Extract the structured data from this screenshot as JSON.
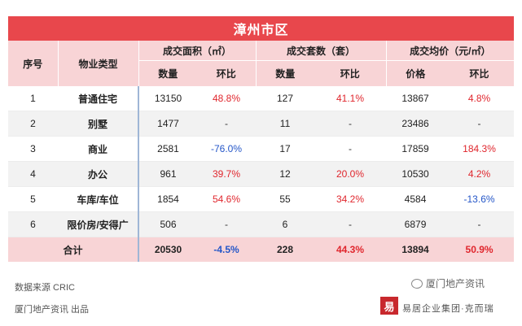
{
  "title": "漳州市区",
  "header": {
    "seq": "序号",
    "type": "物业类型",
    "area": "成交面积（㎡）",
    "sets": "成交套数（套）",
    "price": "成交均价（元/㎡）",
    "qty": "数量",
    "mom": "环比",
    "qty2": "数量",
    "mom2": "环比",
    "price_col": "价格",
    "mom3": "环比"
  },
  "rows": [
    {
      "seq": "1",
      "type": "普通住宅",
      "area": "13150",
      "area_mom": "48.8%",
      "sets": "127",
      "sets_mom": "41.1%",
      "price": "13867",
      "price_mom": "4.8%"
    },
    {
      "seq": "2",
      "type": "别墅",
      "area": "1477",
      "area_mom": "-",
      "sets": "11",
      "sets_mom": "-",
      "price": "23486",
      "price_mom": "-"
    },
    {
      "seq": "3",
      "type": "商业",
      "area": "2581",
      "area_mom": "-76.0%",
      "sets": "17",
      "sets_mom": "-",
      "price": "17859",
      "price_mom": "184.3%"
    },
    {
      "seq": "4",
      "type": "办公",
      "area": "961",
      "area_mom": "39.7%",
      "sets": "12",
      "sets_mom": "20.0%",
      "price": "10530",
      "price_mom": "4.2%"
    },
    {
      "seq": "5",
      "type": "车库/车位",
      "area": "1854",
      "area_mom": "54.6%",
      "sets": "55",
      "sets_mom": "34.2%",
      "price": "4584",
      "price_mom": "-13.6%"
    },
    {
      "seq": "6",
      "type": "限价房/安得广",
      "area": "506",
      "area_mom": "-",
      "sets": "6",
      "sets_mom": "-",
      "price": "6879",
      "price_mom": "-"
    }
  ],
  "total": {
    "label": "合计",
    "area": "20530",
    "area_mom": "-4.5%",
    "sets": "228",
    "sets_mom": "44.3%",
    "price": "13894",
    "price_mom": "50.9%"
  },
  "footer": {
    "source": "数据来源  CRIC",
    "publisher": "厦门地产资讯  出品",
    "brand": "厦门地产资讯",
    "logo": "易",
    "group": "易居企业集团·克而瑞"
  },
  "colors": {
    "accent": "#e8474c",
    "header_bg": "#f8d4d6",
    "positive": "#e0262d",
    "negative": "#2456c8"
  }
}
